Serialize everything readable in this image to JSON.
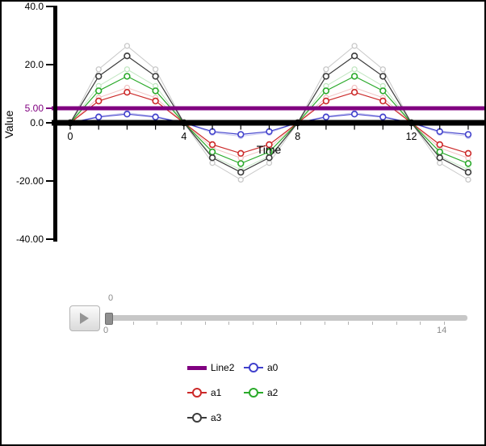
{
  "window": {
    "background": "#ffffff",
    "border_color": "#000000"
  },
  "chart_data": {
    "type": "line",
    "title": "",
    "xlabel": "Time",
    "ylabel": "Value",
    "xlim": [
      0,
      14.5
    ],
    "ylim": [
      -40,
      40
    ],
    "grid": false,
    "legend_position": "bottom",
    "x": [
      0,
      1,
      2,
      3,
      4,
      5,
      6,
      7,
      8,
      9,
      10,
      11,
      12,
      13,
      14
    ],
    "y_ticks": [
      {
        "value": 40,
        "label": "40.0",
        "color": "#000000"
      },
      {
        "value": 20,
        "label": "20.0",
        "color": "#000000"
      },
      {
        "value": 5,
        "label": "5.00",
        "color": "#800080"
      },
      {
        "value": 0,
        "label": "0.0",
        "color": "#000000"
      },
      {
        "value": -20,
        "label": "-20.00",
        "color": "#000000"
      },
      {
        "value": -40,
        "label": "-40.00",
        "color": "#000000"
      }
    ],
    "x_ticks": [
      {
        "value": 0,
        "label": "0"
      },
      {
        "value": 4,
        "label": "4"
      },
      {
        "value": 8,
        "label": "8"
      },
      {
        "value": 12,
        "label": "12"
      }
    ],
    "reference_lines": [
      {
        "name": "Line2",
        "value": 5,
        "color": "#800080"
      },
      {
        "name": "zero-axis",
        "value": 0,
        "color": "#000000"
      }
    ],
    "series": [
      {
        "name": "a0",
        "color": "#4040cc",
        "values": [
          0,
          2,
          3,
          2,
          0,
          -3,
          -4,
          -3,
          0,
          2,
          3,
          2,
          0,
          -3,
          -4
        ]
      },
      {
        "name": "a1",
        "color": "#cc2929",
        "values": [
          0,
          7.5,
          10.5,
          7.5,
          0,
          -7.5,
          -10.5,
          -7.5,
          0,
          7.5,
          10.5,
          7.5,
          0,
          -7.5,
          -10.5
        ]
      },
      {
        "name": "a2",
        "color": "#2aaa2a",
        "values": [
          0,
          11,
          16,
          11,
          0,
          -10,
          -14,
          -10,
          0,
          11,
          16,
          11,
          0,
          -10,
          -14
        ]
      },
      {
        "name": "a3",
        "color": "#3c3c3c",
        "values": [
          0,
          16,
          23,
          16,
          0,
          -12,
          -17,
          -12,
          0,
          16,
          23,
          16,
          0,
          -12,
          -17
        ]
      }
    ],
    "ghost_trail": {
      "scale": 1.15,
      "mix_white": 0.72
    }
  },
  "legend": {
    "items": [
      {
        "label": "Line2",
        "color": "#800080",
        "swatch": "bar"
      },
      {
        "label": "a0",
        "color": "#4040cc",
        "swatch": "line-marker"
      },
      {
        "label": "a1",
        "color": "#cc2929",
        "swatch": "line-marker"
      },
      {
        "label": "a2",
        "color": "#2aaa2a",
        "swatch": "line-marker"
      },
      {
        "label": "a3",
        "color": "#3c3c3c",
        "swatch": "line-marker"
      }
    ]
  },
  "player": {
    "slider": {
      "min": 0,
      "max": 14,
      "value": 0,
      "min_label": "0",
      "max_label": "14",
      "value_label": "0",
      "tick_count": 15
    }
  }
}
